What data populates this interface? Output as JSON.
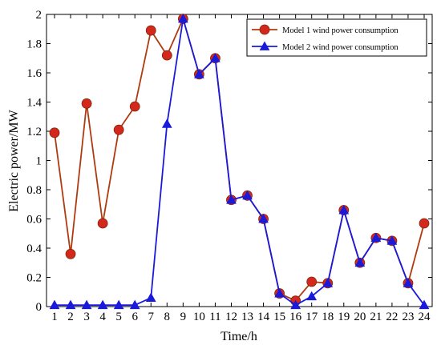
{
  "chart_data": {
    "type": "line",
    "title": "",
    "xlabel": "Time/h",
    "ylabel": "Electric  power/MW",
    "x": [
      1,
      2,
      3,
      4,
      5,
      6,
      7,
      8,
      9,
      10,
      11,
      12,
      13,
      14,
      15,
      16,
      17,
      18,
      19,
      20,
      21,
      22,
      23,
      24
    ],
    "xlim": [
      1,
      24
    ],
    "ylim": [
      0,
      2
    ],
    "yticks": [
      0,
      0.2,
      0.4,
      0.6,
      0.8,
      1,
      1.2,
      1.4,
      1.6,
      1.8,
      2
    ],
    "ytick_labels": [
      "0",
      "0.2",
      "0.4",
      "0.6",
      "0.8",
      "1",
      "1.2",
      "1.4",
      "1.6",
      "1.8",
      "2"
    ],
    "grid": false,
    "legend_position": "top-right",
    "series": [
      {
        "name": "Model 1  wind  power  consumption",
        "color": "#b03a10",
        "marker_color": "#d4281c",
        "marker": "circle",
        "values": [
          1.19,
          0.36,
          1.39,
          0.57,
          1.21,
          1.37,
          1.89,
          1.72,
          1.97,
          1.59,
          1.7,
          0.73,
          0.76,
          0.6,
          0.09,
          0.04,
          0.17,
          0.16,
          0.66,
          0.3,
          0.47,
          0.45,
          0.16,
          0.57
        ]
      },
      {
        "name": "Model 2  wind  power  consumption",
        "color": "#1a1adb",
        "marker_color": "#1a1adb",
        "marker": "triangle",
        "values": [
          0.01,
          0.01,
          0.01,
          0.01,
          0.01,
          0.01,
          0.06,
          1.25,
          1.97,
          1.59,
          1.7,
          0.73,
          0.76,
          0.6,
          0.09,
          0.01,
          0.07,
          0.16,
          0.66,
          0.3,
          0.47,
          0.45,
          0.16,
          0.01
        ]
      }
    ]
  }
}
